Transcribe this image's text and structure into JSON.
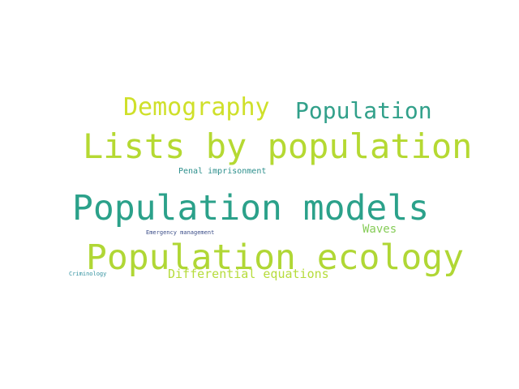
{
  "words": [
    {
      "text": "Lists by population",
      "color": "#b5d932"
    },
    {
      "text": "Population models",
      "color": "#2ba18a"
    },
    {
      "text": "Population ecology",
      "color": "#b0d735"
    },
    {
      "text": "Demography",
      "color": "#cfe02a"
    },
    {
      "text": "Population",
      "color": "#31a08a"
    },
    {
      "text": "Differential equations",
      "color": "#b6dc3c"
    },
    {
      "text": "Waves",
      "color": "#86cc58"
    },
    {
      "text": "Penal imprisonment",
      "color": "#2c8f8c"
    },
    {
      "text": "Emergency management",
      "color": "#3b4d88"
    },
    {
      "text": "Criminology",
      "color": "#3392a0"
    }
  ]
}
